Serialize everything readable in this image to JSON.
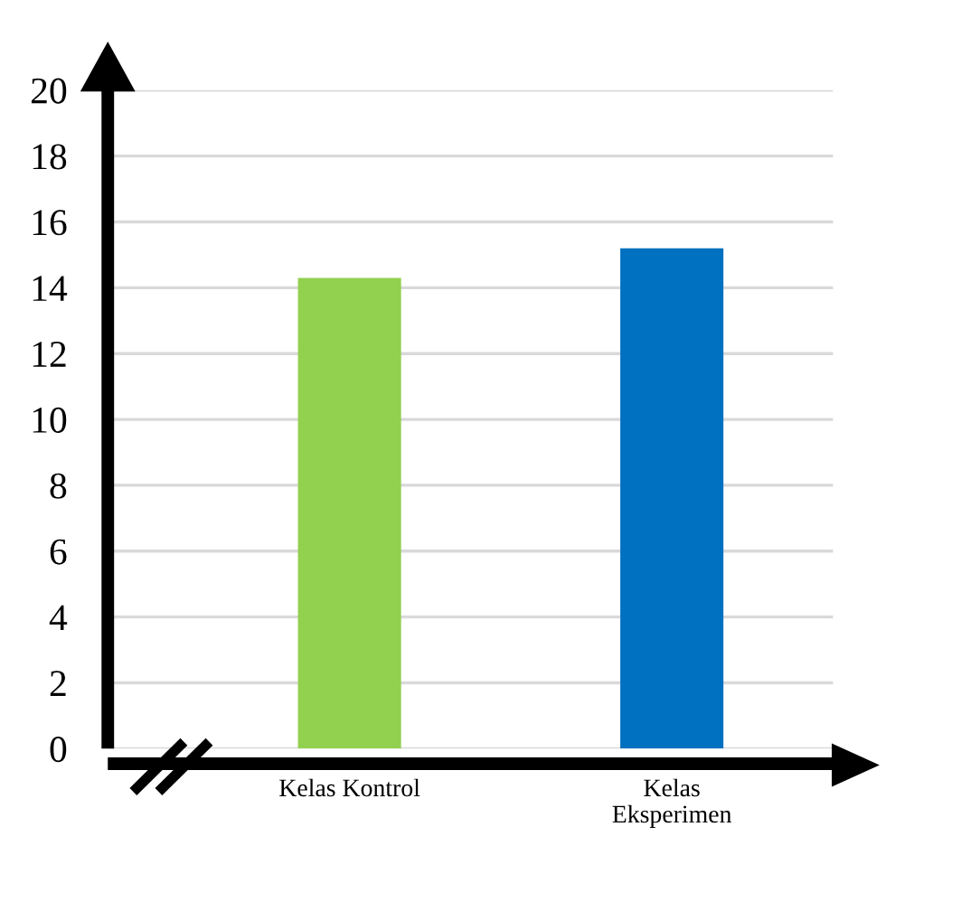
{
  "chart_data": {
    "type": "bar",
    "categories": [
      "Kelas Kontrol",
      "Kelas\nEksperimen"
    ],
    "values": [
      14.3,
      15.2
    ],
    "colors": [
      "#92d050",
      "#0070c0"
    ],
    "ylim": [
      0,
      20
    ],
    "yticks": [
      0,
      2,
      4,
      6,
      8,
      10,
      12,
      14,
      16,
      18,
      20
    ],
    "grid": "y"
  }
}
